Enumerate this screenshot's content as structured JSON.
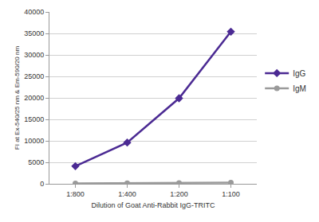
{
  "chart_data": {
    "type": "line",
    "x_label": "Dilution of Goat Anti-Rabbit IgG-TRITC",
    "y_label": "FI at Ex-540/25 nm & Em-590/20 nm",
    "categories": [
      "1:800",
      "1:400",
      "1:200",
      "1:100"
    ],
    "series": [
      {
        "name": "IgG",
        "color": "#4b2a93",
        "marker": "diamond",
        "values": [
          4100,
          9600,
          19900,
          35400
        ]
      },
      {
        "name": "IgM",
        "color": "#9a9a9a",
        "marker": "circle",
        "values": [
          100,
          150,
          200,
          300
        ]
      }
    ],
    "ylim": [
      0,
      40000
    ],
    "yticks": [
      0,
      5000,
      10000,
      15000,
      20000,
      25000,
      30000,
      35000,
      40000
    ],
    "grid": true,
    "legend": "right"
  }
}
